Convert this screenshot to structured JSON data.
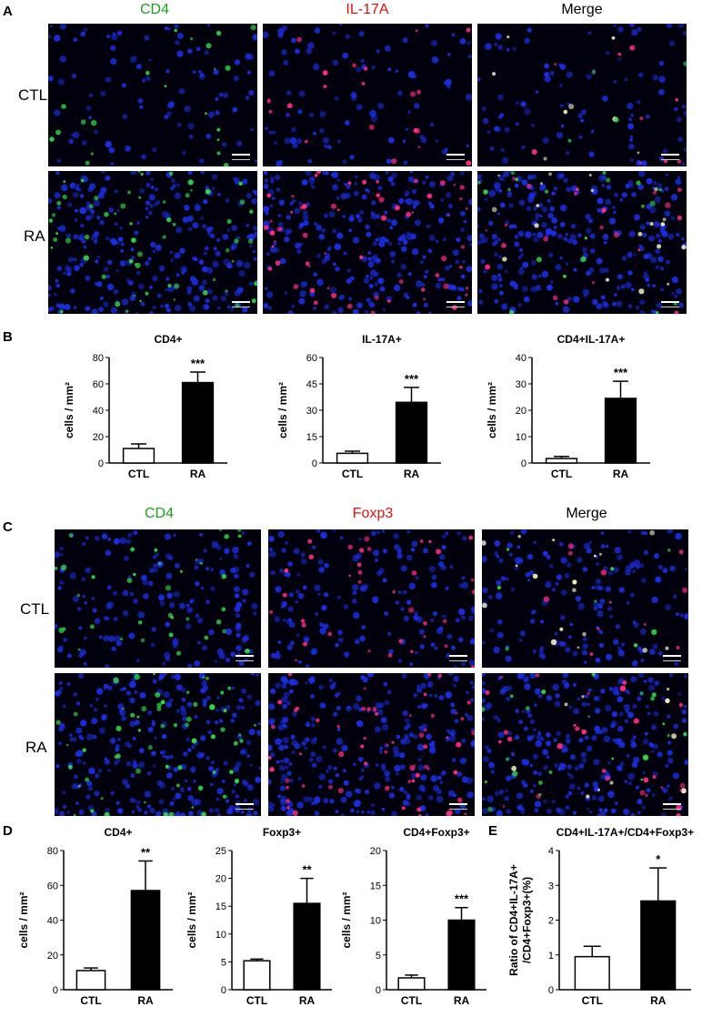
{
  "panels": {
    "A": "A",
    "B": "B",
    "C": "C",
    "D": "D",
    "E": "E"
  },
  "panelA": {
    "columns": [
      "CD4",
      "IL-17A",
      "Merge"
    ],
    "column_colors": [
      "#1aa01a",
      "#e01010",
      "#000000"
    ],
    "rows": [
      "CTL",
      "RA"
    ]
  },
  "panelC": {
    "columns": [
      "CD4",
      "Foxp3",
      "Merge"
    ],
    "column_colors": [
      "#1aa01a",
      "#e01010",
      "#000000"
    ],
    "rows": [
      "CTL",
      "RA"
    ]
  },
  "chart_data": [
    {
      "id": "B1",
      "type": "bar",
      "title": "CD4+",
      "ylabel": "cells / mm²",
      "categories": [
        "CTL",
        "RA"
      ],
      "values": [
        11,
        61
      ],
      "errors": [
        3.5,
        8
      ],
      "ylim": [
        0,
        80
      ],
      "yticks": [
        0,
        20,
        40,
        60,
        80
      ],
      "significance": "***",
      "colors": [
        "#ffffff",
        "#000000"
      ]
    },
    {
      "id": "B2",
      "type": "bar",
      "title": "IL-17A+",
      "ylabel": "cells / mm²",
      "categories": [
        "CTL",
        "RA"
      ],
      "values": [
        5.5,
        34.5
      ],
      "errors": [
        1.2,
        8.5
      ],
      "ylim": [
        0,
        60
      ],
      "yticks": [
        0,
        15,
        30,
        45,
        60
      ],
      "significance": "***",
      "colors": [
        "#ffffff",
        "#000000"
      ]
    },
    {
      "id": "B3",
      "type": "bar",
      "title": "CD4+IL-17A+",
      "ylabel": "cells / mm²",
      "categories": [
        "CTL",
        "RA"
      ],
      "values": [
        1.7,
        24.5
      ],
      "errors": [
        0.8,
        6.5
      ],
      "ylim": [
        0,
        40
      ],
      "yticks": [
        0,
        10,
        20,
        30,
        40
      ],
      "significance": "***",
      "colors": [
        "#ffffff",
        "#000000"
      ]
    },
    {
      "id": "D1",
      "type": "bar",
      "title": "CD4+",
      "ylabel": "cells / mm²",
      "categories": [
        "CTL",
        "RA"
      ],
      "values": [
        11,
        57
      ],
      "errors": [
        1.5,
        17
      ],
      "ylim": [
        0,
        80
      ],
      "yticks": [
        0,
        20,
        40,
        60,
        80
      ],
      "significance": "**",
      "colors": [
        "#ffffff",
        "#000000"
      ]
    },
    {
      "id": "D2",
      "type": "bar",
      "title": "Foxp3+",
      "ylabel": "cells / mm²",
      "categories": [
        "CTL",
        "RA"
      ],
      "values": [
        5.2,
        15.5
      ],
      "errors": [
        0.3,
        4.5
      ],
      "ylim": [
        0,
        25
      ],
      "yticks": [
        0,
        5,
        10,
        15,
        20,
        25
      ],
      "significance": "**",
      "colors": [
        "#ffffff",
        "#000000"
      ]
    },
    {
      "id": "D3",
      "type": "bar",
      "title": "CD4+Foxp3+",
      "ylabel": "cells / mm²",
      "categories": [
        "CTL",
        "RA"
      ],
      "values": [
        1.7,
        10
      ],
      "errors": [
        0.4,
        1.8
      ],
      "ylim": [
        0,
        20
      ],
      "yticks": [
        0,
        5,
        10,
        15,
        20
      ],
      "significance": "***",
      "colors": [
        "#ffffff",
        "#000000"
      ]
    },
    {
      "id": "E1",
      "type": "bar",
      "title": "CD4+IL-17A+/CD4+Foxp3+",
      "ylabel": "Ratio of CD4+IL-17A+ /CD4+Foxp3+(%)",
      "categories": [
        "CTL",
        "RA"
      ],
      "values": [
        0.95,
        2.55
      ],
      "errors": [
        0.3,
        0.95
      ],
      "ylim": [
        0,
        4
      ],
      "yticks": [
        0,
        1,
        2,
        3,
        4
      ],
      "significance": "*",
      "colors": [
        "#ffffff",
        "#000000"
      ]
    }
  ]
}
